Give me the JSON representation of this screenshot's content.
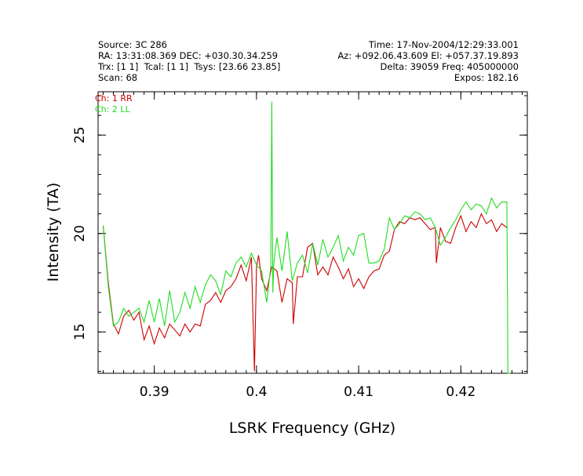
{
  "header": {
    "source": "Source: 3C 286",
    "time": "Time: 17-Nov-2004/12:29:33.001",
    "ra_dec": "RA: 13:31:08.369 DEC: +030.30.34.259",
    "az_el": "Az: +092.06.43.609 El: +057.37.19.893",
    "trx": "Trx: [1 1]  Tcal: [1 1]  Tsys: [23.66 23.85]",
    "delta_freq": "Delta: 39059 Freq: 405000000",
    "scan": "Scan: 68",
    "expos": "Expos: 182.16"
  },
  "colors": {
    "rr": "#cc0000",
    "ll": "#22dd22"
  },
  "chart_data": {
    "type": "line",
    "xlabel": "LSRK Frequency (GHz)",
    "ylabel": "Intensity (TA)",
    "xlim": [
      0.3845,
      0.4265
    ],
    "ylim": [
      12.9,
      27.2
    ],
    "xticks": [
      0.39,
      0.4,
      0.41,
      0.42
    ],
    "xtick_labels": [
      "0.39",
      "0.4",
      "0.41",
      "0.42"
    ],
    "yticks": [
      15,
      20,
      25
    ],
    "ytick_labels": [
      "15",
      "20",
      "25"
    ],
    "legend_position": "top-left",
    "series": [
      {
        "name": "Ch: 1 RR",
        "color": "#cc0000",
        "x": [
          0.385,
          0.3855,
          0.386,
          0.3865,
          0.387,
          0.3875,
          0.388,
          0.3885,
          0.389,
          0.3895,
          0.39,
          0.3905,
          0.391,
          0.3915,
          0.392,
          0.3925,
          0.393,
          0.3935,
          0.394,
          0.3945,
          0.395,
          0.3955,
          0.396,
          0.3965,
          0.397,
          0.3975,
          0.398,
          0.3985,
          0.399,
          0.3995,
          0.3998,
          0.4,
          0.4002,
          0.4005,
          0.401,
          0.4015,
          0.402,
          0.4025,
          0.403,
          0.4035,
          0.4036,
          0.404,
          0.4045,
          0.405,
          0.4055,
          0.406,
          0.4065,
          0.407,
          0.4075,
          0.408,
          0.4085,
          0.409,
          0.4095,
          0.41,
          0.4105,
          0.411,
          0.4115,
          0.412,
          0.4125,
          0.413,
          0.4135,
          0.414,
          0.4145,
          0.415,
          0.4155,
          0.416,
          0.4165,
          0.417,
          0.4175,
          0.4176,
          0.418,
          0.4185,
          0.419,
          0.4195,
          0.42,
          0.4205,
          0.421,
          0.4215,
          0.422,
          0.4225,
          0.423,
          0.4235,
          0.424,
          0.4245
        ],
        "y": [
          20.4,
          17.5,
          15.4,
          14.9,
          15.8,
          16.1,
          15.6,
          16.0,
          14.6,
          15.3,
          14.4,
          15.2,
          14.7,
          15.4,
          15.1,
          14.8,
          15.4,
          15.0,
          15.4,
          15.3,
          16.4,
          16.6,
          17.0,
          16.5,
          17.1,
          17.3,
          17.7,
          18.4,
          17.6,
          18.8,
          13.0,
          18.3,
          18.9,
          17.7,
          17.1,
          18.3,
          18.1,
          16.5,
          17.7,
          17.5,
          15.4,
          17.8,
          17.8,
          19.3,
          19.5,
          17.9,
          18.3,
          17.9,
          18.8,
          18.3,
          17.7,
          18.2,
          17.3,
          17.7,
          17.2,
          17.8,
          18.1,
          18.2,
          18.9,
          19.1,
          20.2,
          20.6,
          20.5,
          20.8,
          20.7,
          20.8,
          20.5,
          20.2,
          20.3,
          18.5,
          20.3,
          19.6,
          19.5,
          20.3,
          20.9,
          20.1,
          20.6,
          20.3,
          21.0,
          20.5,
          20.7,
          20.1,
          20.5,
          20.3
        ]
      },
      {
        "name": "Ch: 2 LL",
        "color": "#22dd22",
        "x": [
          0.385,
          0.3855,
          0.386,
          0.3865,
          0.387,
          0.3875,
          0.388,
          0.3885,
          0.389,
          0.3895,
          0.39,
          0.3905,
          0.391,
          0.3915,
          0.392,
          0.3925,
          0.393,
          0.3935,
          0.394,
          0.3945,
          0.395,
          0.3955,
          0.396,
          0.3965,
          0.397,
          0.3975,
          0.398,
          0.3985,
          0.399,
          0.3995,
          0.4,
          0.4005,
          0.401,
          0.4014,
          0.4015,
          0.4016,
          0.4017,
          0.402,
          0.4025,
          0.403,
          0.4035,
          0.404,
          0.4045,
          0.405,
          0.4055,
          0.406,
          0.4065,
          0.407,
          0.4075,
          0.408,
          0.4085,
          0.409,
          0.4095,
          0.41,
          0.4105,
          0.411,
          0.4115,
          0.412,
          0.4125,
          0.413,
          0.4135,
          0.414,
          0.4145,
          0.415,
          0.4155,
          0.416,
          0.4165,
          0.417,
          0.4175,
          0.418,
          0.4185,
          0.419,
          0.4195,
          0.42,
          0.4205,
          0.421,
          0.4215,
          0.422,
          0.4225,
          0.423,
          0.4235,
          0.424,
          0.4245,
          0.4246,
          0.4248
        ],
        "y": [
          20.4,
          17.3,
          15.3,
          15.5,
          16.2,
          15.8,
          16.0,
          16.2,
          15.5,
          16.6,
          15.5,
          16.7,
          15.3,
          17.1,
          15.5,
          16.0,
          17.0,
          16.2,
          17.3,
          16.5,
          17.4,
          17.9,
          17.6,
          16.9,
          18.1,
          17.8,
          18.5,
          18.8,
          18.3,
          19.0,
          18.4,
          18.1,
          16.5,
          18.3,
          26.7,
          17.0,
          18.5,
          19.8,
          18.1,
          20.1,
          17.6,
          18.5,
          18.9,
          18.0,
          19.5,
          18.4,
          19.7,
          18.8,
          19.3,
          19.9,
          18.6,
          19.3,
          18.9,
          19.9,
          20.0,
          18.5,
          18.5,
          18.6,
          19.2,
          20.8,
          20.2,
          20.5,
          20.9,
          20.8,
          21.1,
          21.0,
          20.7,
          20.8,
          20.3,
          19.4,
          19.8,
          20.3,
          20.7,
          21.2,
          21.6,
          21.2,
          21.5,
          21.4,
          21.0,
          21.8,
          21.3,
          21.6,
          21.6,
          12.9,
          12.9
        ]
      }
    ]
  }
}
